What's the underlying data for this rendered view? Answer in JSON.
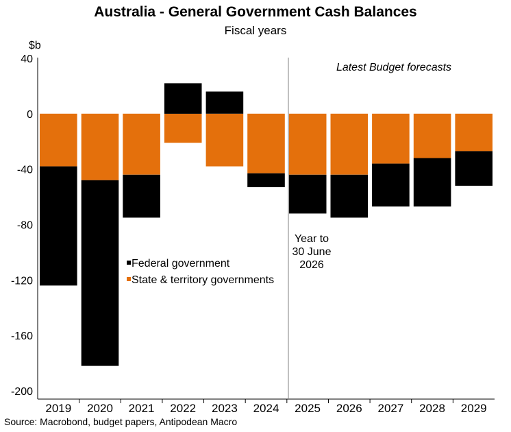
{
  "chart_data": {
    "type": "bar",
    "title": "Australia - General Government Cash Balances",
    "subtitle": "Fiscal years",
    "ylabel": "$b",
    "ylim": [
      -200,
      40
    ],
    "yticks": [
      "40",
      "0",
      "-40",
      "-80",
      "-120",
      "-160",
      "-200"
    ],
    "categories": [
      "2019",
      "2020",
      "2021",
      "2022",
      "2023",
      "2024",
      "2025",
      "2026",
      "2027",
      "2028",
      "2029"
    ],
    "stacked": true,
    "series": [
      {
        "name": "Federal government",
        "color": "#000000",
        "values": [
          -86,
          -134,
          -31,
          22,
          16,
          -10,
          -28,
          -31,
          -31,
          -35,
          -25
        ]
      },
      {
        "name": "State & territory governments",
        "color": "#E4700C",
        "values": [
          -38,
          -48,
          -44,
          -21,
          -38,
          -43,
          -44,
          -44,
          -36,
          -32,
          -27
        ]
      }
    ],
    "annotations": {
      "forecast_label": "Latest Budget forecasts",
      "divider_line1": "Year to",
      "divider_line2": "30 June",
      "divider_line3": "2026"
    },
    "legend_position": "left-middle",
    "source": "Source: Macrobond, budget papers, Antipodean Macro"
  }
}
